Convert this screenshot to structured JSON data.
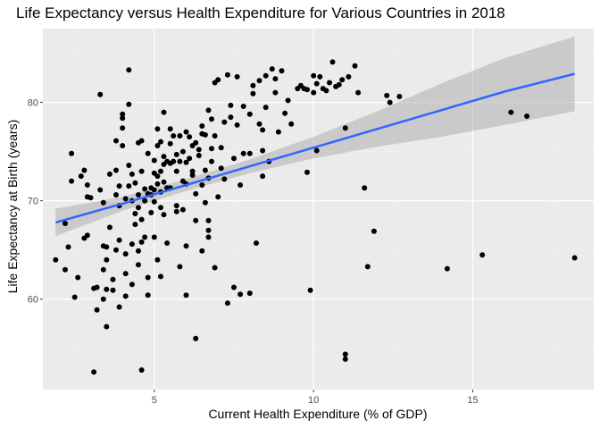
{
  "chart_data": {
    "type": "scatter",
    "title": "Life Expectancy versus Health Expenditure for Various Countries in 2018",
    "xlabel": "Current Health Expenditure (% of GDP)",
    "ylabel": "Life Expectancy at Birth (years)",
    "xlim": [
      1.5,
      18.8
    ],
    "ylim": [
      50.8,
      87.5
    ],
    "x_ticks": [
      5,
      10,
      15
    ],
    "y_ticks": [
      60,
      70,
      80
    ],
    "x_tick_labels": [
      "5",
      "10",
      "15"
    ],
    "y_tick_labels": [
      "60",
      "70",
      "80"
    ],
    "grid": true,
    "legend": "none",
    "colors": {
      "panel": "#ebebeb",
      "grid_major": "#ffffff",
      "grid_minor": "#f4f4f4",
      "point": "#000000",
      "fit_line": "#3366ff",
      "ribbon": "#999999"
    },
    "points": [
      [
        1.9,
        64.0
      ],
      [
        2.2,
        63.0
      ],
      [
        2.3,
        65.3
      ],
      [
        2.2,
        67.7
      ],
      [
        2.4,
        74.8
      ],
      [
        2.4,
        72.0
      ],
      [
        2.5,
        60.2
      ],
      [
        2.6,
        62.2
      ],
      [
        2.7,
        72.5
      ],
      [
        2.8,
        73.1
      ],
      [
        2.8,
        66.2
      ],
      [
        2.9,
        70.4
      ],
      [
        2.9,
        66.5
      ],
      [
        2.9,
        71.6
      ],
      [
        3.0,
        70.3
      ],
      [
        3.1,
        52.6
      ],
      [
        3.1,
        61.1
      ],
      [
        3.2,
        58.9
      ],
      [
        3.2,
        61.2
      ],
      [
        3.3,
        80.8
      ],
      [
        3.3,
        71.1
      ],
      [
        3.4,
        69.8
      ],
      [
        3.4,
        65.4
      ],
      [
        3.4,
        63.0
      ],
      [
        3.4,
        60.0
      ],
      [
        3.5,
        57.2
      ],
      [
        3.5,
        61.0
      ],
      [
        3.5,
        64.0
      ],
      [
        3.5,
        65.3
      ],
      [
        3.6,
        67.3
      ],
      [
        3.6,
        72.7
      ],
      [
        3.7,
        60.9
      ],
      [
        3.7,
        62.0
      ],
      [
        3.8,
        76.1
      ],
      [
        3.8,
        70.6
      ],
      [
        3.8,
        65.0
      ],
      [
        3.8,
        73.1
      ],
      [
        3.9,
        59.2
      ],
      [
        3.9,
        71.5
      ],
      [
        3.9,
        66.0
      ],
      [
        3.9,
        69.5
      ],
      [
        4.0,
        75.6
      ],
      [
        4.0,
        78.4
      ],
      [
        4.0,
        78.8
      ],
      [
        4.0,
        77.4
      ],
      [
        4.1,
        62.6
      ],
      [
        4.1,
        64.6
      ],
      [
        4.1,
        70.2
      ],
      [
        4.1,
        60.3
      ],
      [
        4.2,
        83.3
      ],
      [
        4.2,
        79.8
      ],
      [
        4.2,
        73.6
      ],
      [
        4.2,
        71.5
      ],
      [
        4.3,
        72.7
      ],
      [
        4.3,
        65.6
      ],
      [
        4.3,
        61.5
      ],
      [
        4.3,
        70.0
      ],
      [
        4.4,
        67.6
      ],
      [
        4.4,
        68.7
      ],
      [
        4.4,
        71.8
      ],
      [
        4.5,
        75.9
      ],
      [
        4.5,
        70.6
      ],
      [
        4.5,
        69.3
      ],
      [
        4.5,
        64.9
      ],
      [
        4.5,
        63.5
      ],
      [
        4.6,
        68.1
      ],
      [
        4.6,
        52.8
      ],
      [
        4.6,
        76.1
      ],
      [
        4.6,
        73.0
      ],
      [
        4.6,
        65.8
      ],
      [
        4.7,
        70.0
      ],
      [
        4.7,
        66.3
      ],
      [
        4.7,
        71.2
      ],
      [
        4.8,
        62.2
      ],
      [
        4.8,
        74.8
      ],
      [
        4.8,
        60.4
      ],
      [
        4.8,
        70.7
      ],
      [
        4.9,
        71.3
      ],
      [
        4.9,
        68.8
      ],
      [
        4.9,
        70.6
      ],
      [
        5.0,
        71.1
      ],
      [
        5.0,
        72.8
      ],
      [
        5.0,
        74.1
      ],
      [
        5.0,
        69.9
      ],
      [
        5.0,
        66.3
      ],
      [
        5.1,
        75.6
      ],
      [
        5.1,
        72.5
      ],
      [
        5.1,
        71.7
      ],
      [
        5.1,
        77.3
      ],
      [
        5.1,
        64.0
      ],
      [
        5.2,
        76.0
      ],
      [
        5.2,
        73.0
      ],
      [
        5.2,
        70.9
      ],
      [
        5.2,
        69.3
      ],
      [
        5.2,
        62.3
      ],
      [
        5.3,
        74.5
      ],
      [
        5.3,
        71.9
      ],
      [
        5.3,
        73.7
      ],
      [
        5.3,
        68.6
      ],
      [
        5.3,
        79.0
      ],
      [
        5.4,
        74.0
      ],
      [
        5.4,
        71.3
      ],
      [
        5.4,
        65.7
      ],
      [
        5.5,
        75.8
      ],
      [
        5.5,
        77.3
      ],
      [
        5.5,
        73.8
      ],
      [
        5.5,
        71.3
      ],
      [
        5.6,
        74.0
      ],
      [
        5.6,
        76.6
      ],
      [
        5.7,
        73.0
      ],
      [
        5.7,
        74.7
      ],
      [
        5.7,
        68.9
      ],
      [
        5.7,
        69.5
      ],
      [
        5.8,
        76.6
      ],
      [
        5.8,
        74.0
      ],
      [
        5.8,
        63.3
      ],
      [
        5.9,
        75.0
      ],
      [
        5.9,
        72.0
      ],
      [
        5.9,
        69.1
      ],
      [
        6.0,
        77.0
      ],
      [
        6.0,
        73.9
      ],
      [
        6.0,
        71.7
      ],
      [
        6.0,
        65.4
      ],
      [
        6.0,
        60.4
      ],
      [
        6.1,
        74.3
      ],
      [
        6.1,
        76.5
      ],
      [
        6.2,
        75.6
      ],
      [
        6.2,
        73.0
      ],
      [
        6.2,
        72.6
      ],
      [
        6.3,
        56.0
      ],
      [
        6.3,
        75.9
      ],
      [
        6.3,
        68.0
      ],
      [
        6.3,
        70.7
      ],
      [
        6.4,
        74.6
      ],
      [
        6.4,
        75.2
      ],
      [
        6.5,
        77.6
      ],
      [
        6.5,
        76.8
      ],
      [
        6.5,
        71.6
      ],
      [
        6.5,
        64.9
      ],
      [
        6.6,
        76.7
      ],
      [
        6.6,
        73.1
      ],
      [
        6.6,
        69.8
      ],
      [
        6.7,
        79.2
      ],
      [
        6.7,
        72.3
      ],
      [
        6.7,
        68.0
      ],
      [
        6.7,
        67.0
      ],
      [
        6.7,
        66.3
      ],
      [
        6.8,
        78.3
      ],
      [
        6.8,
        75.3
      ],
      [
        6.8,
        74.0
      ],
      [
        6.9,
        82.0
      ],
      [
        6.9,
        76.6
      ],
      [
        6.9,
        63.2
      ],
      [
        7.0,
        82.3
      ],
      [
        7.0,
        70.4
      ],
      [
        7.1,
        73.3
      ],
      [
        7.1,
        75.4
      ],
      [
        7.2,
        72.2
      ],
      [
        7.2,
        78.0
      ],
      [
        7.3,
        82.8
      ],
      [
        7.3,
        59.6
      ],
      [
        7.4,
        79.7
      ],
      [
        7.4,
        78.5
      ],
      [
        7.5,
        74.3
      ],
      [
        7.5,
        61.2
      ],
      [
        7.6,
        82.6
      ],
      [
        7.6,
        77.7
      ],
      [
        7.7,
        71.6
      ],
      [
        7.7,
        60.5
      ],
      [
        7.8,
        74.8
      ],
      [
        7.8,
        79.6
      ],
      [
        8.0,
        78.8
      ],
      [
        8.0,
        74.8
      ],
      [
        8.0,
        60.6
      ],
      [
        8.1,
        80.9
      ],
      [
        8.1,
        81.7
      ],
      [
        8.2,
        65.7
      ],
      [
        8.3,
        82.2
      ],
      [
        8.3,
        77.8
      ],
      [
        8.4,
        77.2
      ],
      [
        8.4,
        75.1
      ],
      [
        8.4,
        72.5
      ],
      [
        8.5,
        79.5
      ],
      [
        8.5,
        82.7
      ],
      [
        8.6,
        74.0
      ],
      [
        8.7,
        83.4
      ],
      [
        8.8,
        82.4
      ],
      [
        8.8,
        81.0
      ],
      [
        8.9,
        77.0
      ],
      [
        9.0,
        83.2
      ],
      [
        9.1,
        78.9
      ],
      [
        9.2,
        80.2
      ],
      [
        9.3,
        77.8
      ],
      [
        9.5,
        81.4
      ],
      [
        9.6,
        81.7
      ],
      [
        9.7,
        81.4
      ],
      [
        9.8,
        81.3
      ],
      [
        9.8,
        72.9
      ],
      [
        9.9,
        60.9
      ],
      [
        10.0,
        81.0
      ],
      [
        10.0,
        82.7
      ],
      [
        10.1,
        81.9
      ],
      [
        10.1,
        75.1
      ],
      [
        10.2,
        82.6
      ],
      [
        10.3,
        81.4
      ],
      [
        10.4,
        81.2
      ],
      [
        10.5,
        82.0
      ],
      [
        10.6,
        84.1
      ],
      [
        10.7,
        81.6
      ],
      [
        10.8,
        81.8
      ],
      [
        10.9,
        82.3
      ],
      [
        11.0,
        77.4
      ],
      [
        11.0,
        54.4
      ],
      [
        11.0,
        53.9
      ],
      [
        11.1,
        82.6
      ],
      [
        11.3,
        83.7
      ],
      [
        11.4,
        81.0
      ],
      [
        11.6,
        71.3
      ],
      [
        11.7,
        63.3
      ],
      [
        11.9,
        66.9
      ],
      [
        12.3,
        80.7
      ],
      [
        12.4,
        80.0
      ],
      [
        12.7,
        80.6
      ],
      [
        14.2,
        63.1
      ],
      [
        15.3,
        64.5
      ],
      [
        16.2,
        79.0
      ],
      [
        16.7,
        78.6
      ],
      [
        18.2,
        64.2
      ]
    ],
    "fit": {
      "x": [
        1.9,
        4,
        6,
        8,
        10,
        12,
        14,
        16,
        18.2
      ],
      "y": [
        67.8,
        69.7,
        71.6,
        73.5,
        75.4,
        77.3,
        79.2,
        81.1,
        82.9
      ],
      "lower": [
        66.4,
        69.0,
        71.0,
        72.8,
        74.3,
        75.5,
        76.5,
        77.7,
        79.1
      ],
      "upper": [
        69.2,
        70.4,
        72.2,
        74.2,
        76.5,
        79.1,
        81.9,
        84.5,
        86.7
      ]
    }
  }
}
